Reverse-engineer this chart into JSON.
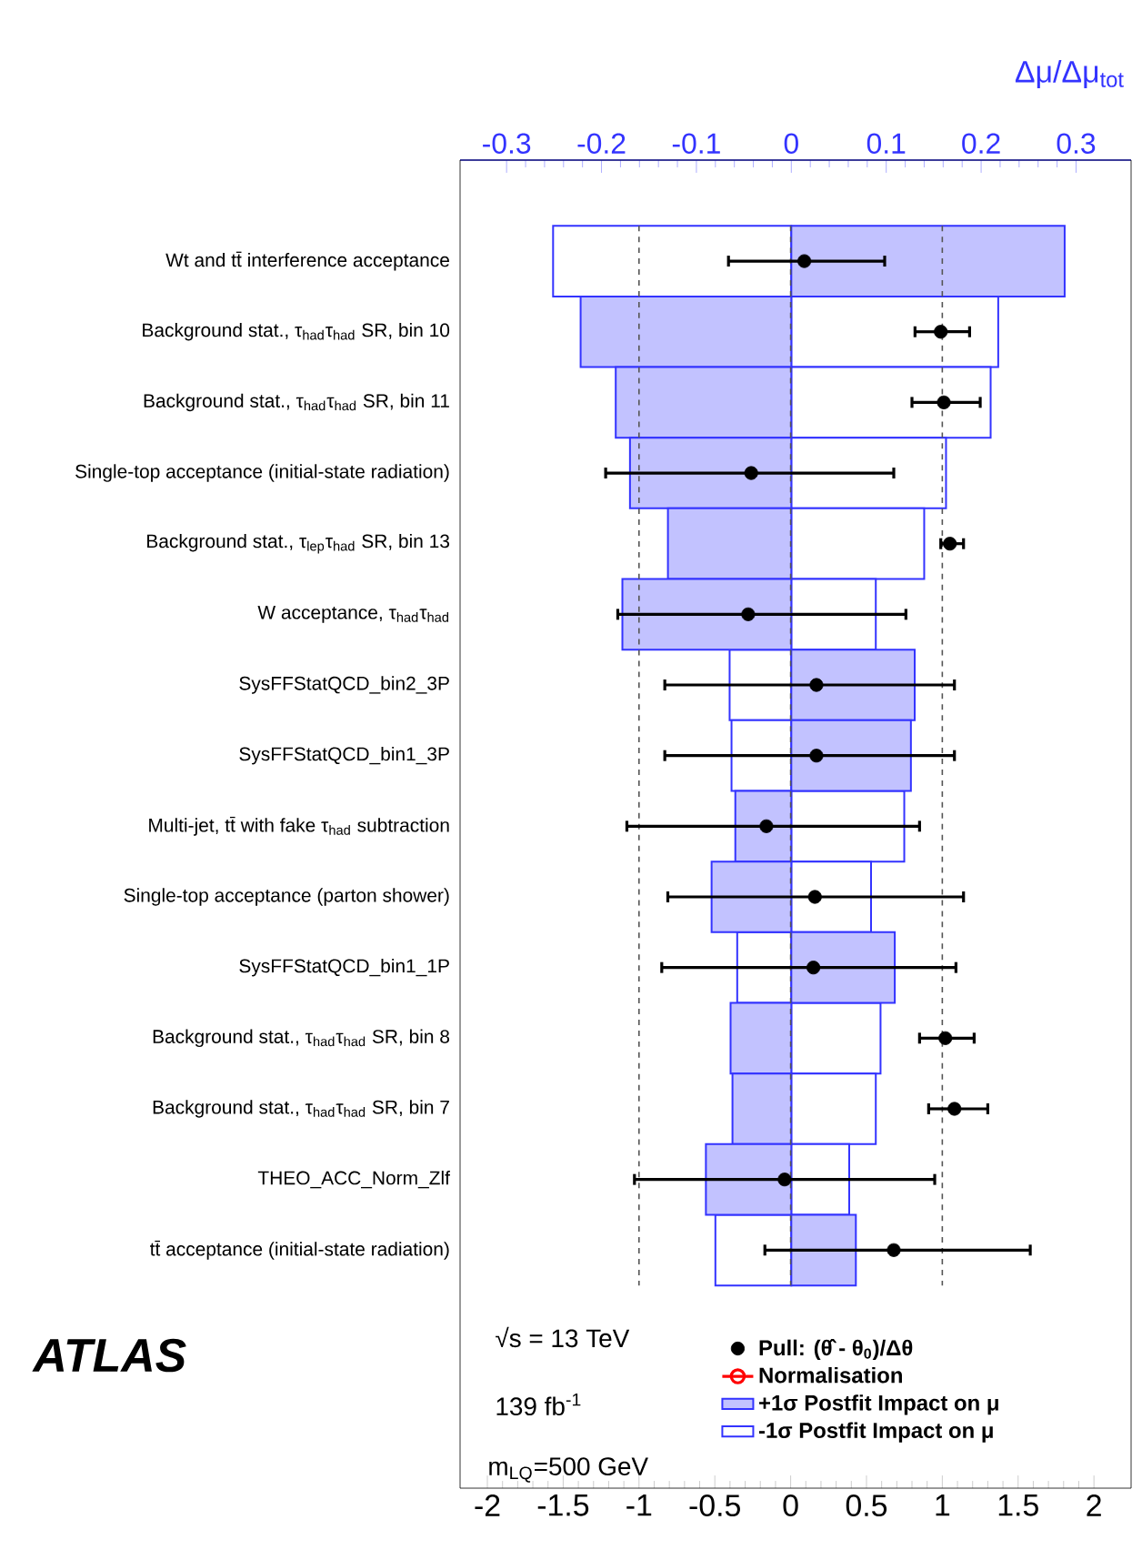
{
  "chart_data": {
    "type": "bar",
    "orientation": "horizontal",
    "categories": [
      "Wt and tt̄ interference acceptance",
      "Background stat., τ$_{had}$τ$_{had}$ SR, bin 10",
      "Background stat., τ$_{had}$τ$_{had}$ SR, bin 11",
      "Single-top acceptance (initial-state radiation)",
      "Background stat., τ$_{lep}$τ$_{had}$ SR, bin 13",
      "W acceptance, τ$_{had}$τ$_{had}$",
      "SysFFStatQCD_bin2_3P",
      "SysFFStatQCD_bin1_3P",
      "Multi-jet, tt̄ with fake τ$_{had}$ subtraction",
      "Single-top acceptance (parton shower)",
      "SysFFStatQCD_bin1_1P",
      "Background stat., τ$_{had}$τ$_{had}$ SR, bin 8",
      "Background stat., τ$_{had}$τ$_{had}$ SR, bin 7",
      "THEO_ACC_Norm_Zlf",
      "tt̄ acceptance (initial-state radiation)"
    ],
    "xlim": [
      -2.18,
      2.245
    ],
    "xticks": [
      -2,
      -1.5,
      -1,
      -0.5,
      0,
      0.5,
      1,
      1.5,
      2
    ],
    "x2lim": [
      -0.349,
      0.358
    ],
    "x2ticks": [
      -0.3,
      -0.2,
      -0.1,
      0,
      0.1,
      0.2,
      0.3
    ],
    "x2label": "Δμ/Δμ$_{tot}$",
    "series": [
      {
        "name": "Pull: (θ̂ - θ$_{0}$)/Δθ",
        "type": "scatter",
        "color": "#000000",
        "marker": "circle",
        "values": [
          0.09,
          0.99,
          1.01,
          -0.26,
          1.05,
          -0.28,
          0.17,
          0.17,
          -0.16,
          0.16,
          0.15,
          1.02,
          1.08,
          -0.04,
          0.68
        ],
        "errors": [
          [
            -0.41,
            0.62
          ],
          [
            0.82,
            1.18
          ],
          [
            0.8,
            1.25
          ],
          [
            -1.22,
            0.68
          ],
          [
            0.99,
            1.14
          ],
          [
            -1.14,
            0.76
          ],
          [
            -0.83,
            1.08
          ],
          [
            -0.83,
            1.08
          ],
          [
            -1.08,
            0.85
          ],
          [
            -0.81,
            1.14
          ],
          [
            -0.85,
            1.09
          ],
          [
            0.85,
            1.21
          ],
          [
            0.91,
            1.3
          ],
          [
            -1.03,
            0.95
          ],
          [
            -0.17,
            1.58
          ]
        ]
      },
      {
        "name": "Normalisation",
        "type": "scatter",
        "color": "#ff0000",
        "marker": "circle",
        "values": [
          null,
          null,
          null,
          null,
          null,
          null,
          null,
          null,
          null,
          null,
          null,
          null,
          null,
          null,
          null
        ]
      },
      {
        "name": "+1σ Postfit Impact on μ",
        "axis": "x2",
        "color": "#3333ff",
        "values": [
          0.288,
          -0.222,
          -0.185,
          -0.17,
          -0.13,
          -0.178,
          0.13,
          0.126,
          -0.059,
          -0.084,
          0.109,
          -0.064,
          -0.062,
          -0.09,
          0.068
        ]
      },
      {
        "name": "-1σ Postfit Impact on μ",
        "axis": "x2",
        "color": "#3333ff",
        "values": [
          -0.251,
          0.218,
          0.21,
          0.163,
          0.14,
          0.089,
          -0.065,
          -0.063,
          0.119,
          0.084,
          -0.057,
          0.094,
          0.089,
          0.061,
          -0.08
        ]
      }
    ],
    "ref_lines": [
      {
        "axis": "x",
        "value": -1,
        "color": "#555555",
        "line_style": "dashed"
      },
      {
        "axis": "x",
        "value": 0,
        "color": "#555555",
        "line_style": "dashed"
      },
      {
        "axis": "x",
        "value": 1,
        "color": "#555555",
        "line_style": "dashed"
      }
    ],
    "legend": "bottom",
    "stacked": true,
    "annotations": [
      "√s = 13 TeV",
      "139 fb$^{-1}$",
      "m$_{LQ}$=500 GeV",
      "ATLAS"
    ]
  }
}
